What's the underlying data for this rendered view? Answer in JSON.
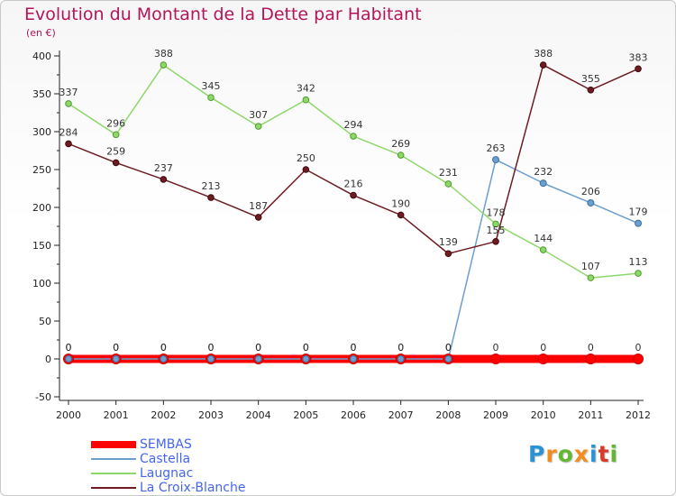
{
  "title": "Evolution du Montant de la Dette par Habitant",
  "subtitle": "(en €)",
  "logo": {
    "letters": [
      "P",
      "r",
      "o",
      "x",
      "i",
      "t",
      "i"
    ],
    "colors": [
      "#2a93d6",
      "#f28c1e",
      "#62b833",
      "#f28c1e",
      "#2a93d6",
      "#d63a2a",
      "#62b833"
    ]
  },
  "chart_data": {
    "type": "line",
    "title": "Evolution du Montant de la Dette par Habitant",
    "ylabel": "(en €)",
    "xlabel": "",
    "x": [
      "2000",
      "2001",
      "2002",
      "2003",
      "2004",
      "2005",
      "2006",
      "2007",
      "2008",
      "2009",
      "2010",
      "2011",
      "2012"
    ],
    "yticks": [
      -50,
      0,
      50,
      100,
      150,
      200,
      250,
      300,
      350,
      400
    ],
    "ylim": [
      -50,
      400
    ],
    "grid": false,
    "legend_position": "bottom-left",
    "series": [
      {
        "name": "La Croix-Blanche",
        "color": "#6e1c22",
        "values": [
          284,
          259,
          237,
          213,
          187,
          250,
          216,
          190,
          139,
          155,
          388,
          355,
          383
        ]
      },
      {
        "name": "Laugnac",
        "color": "#8ed86a",
        "values": [
          337,
          296,
          388,
          345,
          307,
          342,
          294,
          269,
          231,
          178,
          144,
          107,
          113
        ]
      },
      {
        "name": "Castella",
        "color": "#6a9fcf",
        "values": [
          0,
          0,
          0,
          0,
          0,
          0,
          0,
          0,
          0,
          263,
          232,
          206,
          179
        ]
      },
      {
        "name": "SEMBAS",
        "color": "#ff0000",
        "values": [
          0,
          0,
          0,
          0,
          0,
          0,
          0,
          0,
          0,
          0,
          0,
          0,
          0
        ]
      }
    ],
    "legend": [
      "SEMBAS",
      "Castella",
      "Laugnac",
      "La Croix-Blanche"
    ]
  }
}
